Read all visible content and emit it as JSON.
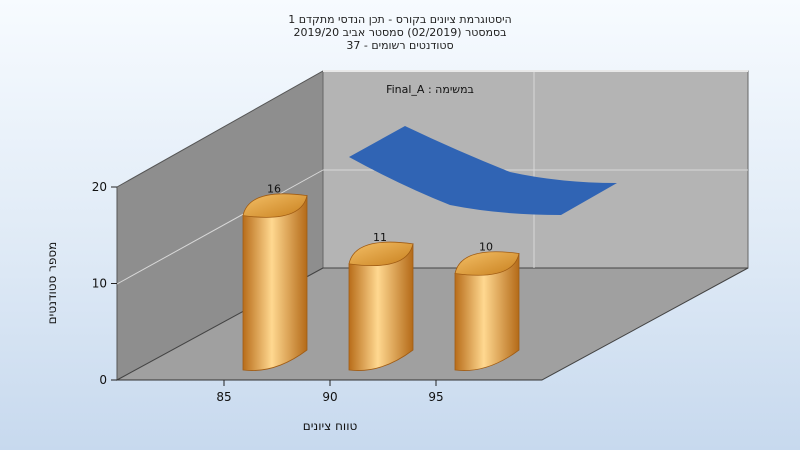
{
  "chart_data": {
    "type": "bar",
    "title_lines": [
      "היסטוגרמת ציונים בקורס - תכן הנדסי מתקדם 1",
      "בסמסטר  (02/2019)  סמסטר אביב 2019/20",
      "סטודנטים רשומים - 37"
    ],
    "xlabel": "טווח ציונים",
    "ylabel": "מספר סטודנטים",
    "ylim": [
      0,
      20
    ],
    "yticks": [
      0,
      10,
      20
    ],
    "xticks": [
      85,
      90,
      95
    ],
    "categories": [
      "85",
      "90",
      "95"
    ],
    "series": [
      {
        "values": [
          16,
          11,
          10
        ]
      }
    ],
    "legend_label": "במשימה : Final_A",
    "grid": true,
    "colors": {
      "bar": "#e8a040",
      "ribbon": "#3064b4",
      "back_wall": "#b4b4b4",
      "side_wall": "#8e8e8e",
      "floor": "#a0a0a0"
    }
  }
}
